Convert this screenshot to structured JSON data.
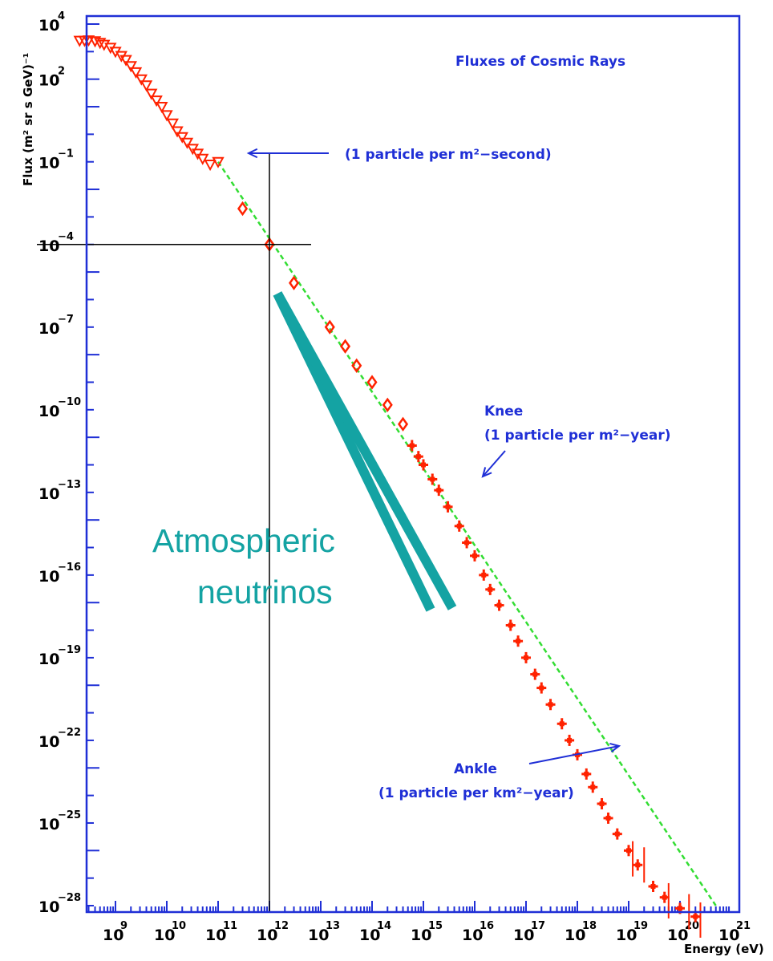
{
  "colors": {
    "frame": "#1f2fd6",
    "annotation_text": "#1f2fd6",
    "data_points": "#ff2200",
    "fit_line": "#33dd33",
    "neutrino_band": "#14a3a3",
    "guide_lines": "#000000"
  },
  "chart_data": {
    "type": "scatter",
    "title": "Fluxes of Cosmic Rays",
    "xlabel": "Energy (eV)",
    "ylabel": "Flux (m² sr s GeV)⁻¹",
    "x_scale": "log",
    "y_scale": "log",
    "xlim": [
      100000000.0,
      1e+21
    ],
    "ylim": [
      1e-28,
      10000.0
    ],
    "grid": false,
    "x_ticks": [
      {
        "base": "10",
        "exp": "9",
        "value": 1000000000.0
      },
      {
        "base": "10",
        "exp": "10",
        "value": 10000000000.0
      },
      {
        "base": "10",
        "exp": "11",
        "value": 100000000000.0
      },
      {
        "base": "10",
        "exp": "12",
        "value": 1000000000000.0
      },
      {
        "base": "10",
        "exp": "13",
        "value": 10000000000000.0
      },
      {
        "base": "10",
        "exp": "14",
        "value": 100000000000000.0
      },
      {
        "base": "10",
        "exp": "15",
        "value": 1000000000000000.0
      },
      {
        "base": "10",
        "exp": "16",
        "value": 1e+16
      },
      {
        "base": "10",
        "exp": "17",
        "value": 1e+17
      },
      {
        "base": "10",
        "exp": "18",
        "value": 1e+18
      },
      {
        "base": "10",
        "exp": "19",
        "value": 1e+19
      },
      {
        "base": "10",
        "exp": "20",
        "value": 1e+20
      },
      {
        "base": "10",
        "exp": "21",
        "value": 1e+21
      }
    ],
    "y_ticks": [
      {
        "base": "10",
        "exp": "4",
        "value": 10000.0
      },
      {
        "base": "10",
        "exp": "2",
        "value": 100.0
      },
      {
        "base": "10",
        "exp": "−1",
        "value": 0.1
      },
      {
        "base": "10",
        "exp": "−4",
        "value": 0.0001
      },
      {
        "base": "10",
        "exp": "−7",
        "value": 1e-07
      },
      {
        "base": "10",
        "exp": "−10",
        "value": 1e-10
      },
      {
        "base": "10",
        "exp": "−13",
        "value": 1e-13
      },
      {
        "base": "10",
        "exp": "−16",
        "value": 1e-16
      },
      {
        "base": "10",
        "exp": "−19",
        "value": 1e-19
      },
      {
        "base": "10",
        "exp": "−22",
        "value": 1e-22
      },
      {
        "base": "10",
        "exp": "−25",
        "value": 1e-25
      },
      {
        "base": "10",
        "exp": "−28",
        "value": 1e-28
      }
    ],
    "series": [
      {
        "marker": "triangle",
        "points": [
          [
            200000000.0,
            2500
          ],
          [
            250000000.0,
            2500
          ],
          [
            300000000.0,
            2600
          ],
          [
            400000000.0,
            2400
          ],
          [
            500000000.0,
            2100
          ],
          [
            600000000.0,
            1800
          ],
          [
            800000000.0,
            1400
          ],
          [
            1000000000.0,
            1000
          ],
          [
            1300000000.0,
            700
          ],
          [
            1600000000.0,
            500
          ],
          [
            2000000000.0,
            300
          ],
          [
            2500000000.0,
            180
          ],
          [
            3200000000.0,
            100
          ],
          [
            4000000000.0,
            60
          ],
          [
            5000000000.0,
            30
          ],
          [
            6300000000.0,
            17
          ],
          [
            8000000000.0,
            10
          ],
          [
            10000000000.0,
            5
          ],
          [
            13000000000.0,
            2.5
          ],
          [
            16000000000.0,
            1.3
          ],
          [
            20000000000.0,
            0.8
          ],
          [
            25000000000.0,
            0.5
          ],
          [
            32000000000.0,
            0.3
          ],
          [
            40000000000.0,
            0.2
          ],
          [
            50000000000.0,
            0.13
          ],
          [
            70000000000.0,
            0.08
          ],
          [
            100000000000.0,
            0.1
          ]
        ]
      },
      {
        "marker": "diamond",
        "points": [
          [
            300000000000.0,
            0.002
          ],
          [
            1000000000000.0,
            0.0001
          ],
          [
            3000000000000.0,
            4e-06
          ],
          [
            15000000000000.0,
            1e-07
          ],
          [
            30000000000000.0,
            2e-08
          ],
          [
            50000000000000.0,
            4e-09
          ],
          [
            100000000000000.0,
            1e-09
          ],
          [
            200000000000000.0,
            1.5e-10
          ],
          [
            400000000000000.0,
            3e-11
          ]
        ]
      },
      {
        "marker": "cross",
        "points": [
          [
            600000000000000.0,
            5e-12
          ],
          [
            800000000000000.0,
            2e-12
          ],
          [
            1000000000000000.0,
            1e-12
          ],
          [
            1500000000000000.0,
            3e-13
          ],
          [
            2000000000000000.0,
            1.2e-13
          ],
          [
            3000000000000000.0,
            3e-14
          ],
          [
            5000000000000000.0,
            6e-15
          ],
          [
            7000000000000000.0,
            1.5e-15
          ],
          [
            1e+16,
            5e-16
          ],
          [
            1.5e+16,
            1e-16
          ],
          [
            2e+16,
            3e-17
          ],
          [
            3e+16,
            8e-18
          ],
          [
            5e+16,
            1.5e-18
          ],
          [
            7e+16,
            4e-19
          ],
          [
            1e+17,
            1e-19
          ],
          [
            1.5e+17,
            2.5e-20
          ],
          [
            2e+17,
            8e-21
          ],
          [
            3e+17,
            2e-21
          ],
          [
            5e+17,
            4e-22
          ],
          [
            7e+17,
            1e-22
          ],
          [
            1e+18,
            3e-23
          ],
          [
            1.5e+18,
            6e-24
          ],
          [
            2e+18,
            2e-24
          ],
          [
            3e+18,
            5e-25
          ],
          [
            4e+18,
            1.5e-25
          ],
          [
            6e+18,
            4e-26
          ],
          [
            1e+19,
            1e-26
          ],
          [
            1.5e+19,
            3e-27
          ],
          [
            3e+19,
            5e-28
          ],
          [
            5e+19,
            2e-28
          ],
          [
            1e+20,
            8e-29
          ],
          [
            2e+20,
            4e-29
          ]
        ]
      }
    ],
    "fit_line": {
      "from": [
        100000000000.0,
        0.1
      ],
      "to": [
        5e+20,
        1e-28
      ]
    },
    "annotations": {
      "one_per_m2_second": "(1 particle per m²−second)",
      "knee_title": "Knee",
      "knee_rate": "(1 particle per m²−year)",
      "ankle_title": "Ankle",
      "ankle_rate": "(1 particle per km²−year)",
      "neutrino_line1": "Atmospheric",
      "neutrino_line2": "neutrinos"
    },
    "guide_lines": {
      "vertical_x": 1000000000000.0,
      "horizontal_y": 0.0001
    }
  }
}
